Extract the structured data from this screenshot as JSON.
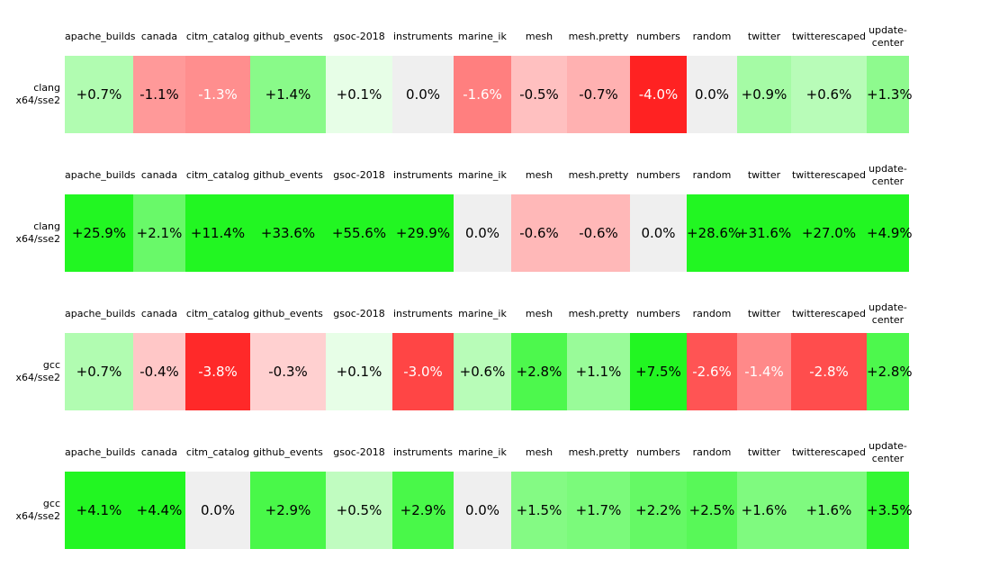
{
  "chart_data": {
    "type": "heatmap",
    "columns": [
      "apache_builds",
      "canada",
      "citm_catalog",
      "github_events",
      "gsoc-2018",
      "instruments",
      "marine_ik",
      "mesh",
      "mesh.pretty",
      "numbers",
      "random",
      "twitter",
      "twitterescaped",
      "update-center"
    ],
    "rows": [
      {
        "label_lines": [
          "clang",
          "x64/sse2"
        ],
        "cells": [
          "+0.7%",
          "-1.1%",
          "-1.3%",
          "+1.4%",
          "+0.1%",
          "0.0%",
          "-1.6%",
          "-0.5%",
          "-0.7%",
          "-4.0%",
          "0.0%",
          "+0.9%",
          "+0.6%",
          "+1.3%"
        ],
        "values": [
          0.7,
          -1.1,
          -1.3,
          1.4,
          0.1,
          0.0,
          -1.6,
          -0.5,
          -0.7,
          -4.0,
          0.0,
          0.9,
          0.6,
          1.3
        ]
      },
      {
        "label_lines": [
          "clang",
          "x64/sse2"
        ],
        "cells": [
          "+25.9%",
          "+2.1%",
          "+11.4%",
          "+33.6%",
          "+55.6%",
          "+29.9%",
          "0.0%",
          "-0.6%",
          "-0.6%",
          "0.0%",
          "+28.6%",
          "+31.6%",
          "+27.0%",
          "+4.9%"
        ],
        "values": [
          25.9,
          2.1,
          11.4,
          33.6,
          55.6,
          29.9,
          0.0,
          -0.6,
          -0.6,
          0.0,
          28.6,
          31.6,
          27.0,
          4.9
        ]
      },
      {
        "label_lines": [
          "gcc",
          "x64/sse2"
        ],
        "cells": [
          "+0.7%",
          "-0.4%",
          "-3.8%",
          "-0.3%",
          "+0.1%",
          "-3.0%",
          "+0.6%",
          "+2.8%",
          "+1.1%",
          "+7.5%",
          "-2.6%",
          "-1.4%",
          "-2.8%",
          "+2.8%"
        ],
        "values": [
          0.7,
          -0.4,
          -3.8,
          -0.3,
          0.1,
          -3.0,
          0.6,
          2.8,
          1.1,
          7.5,
          -2.6,
          -1.4,
          -2.8,
          2.8
        ]
      },
      {
        "label_lines": [
          "gcc",
          "x64/sse2"
        ],
        "cells": [
          "+4.1%",
          "+4.4%",
          "0.0%",
          "+2.9%",
          "+0.5%",
          "+2.9%",
          "0.0%",
          "+1.5%",
          "+1.7%",
          "+2.2%",
          "+2.5%",
          "+1.6%",
          "+1.6%",
          "+3.5%"
        ],
        "values": [
          4.1,
          4.4,
          0.0,
          2.9,
          0.5,
          2.9,
          0.0,
          1.5,
          1.7,
          2.2,
          2.5,
          1.6,
          1.6,
          3.5
        ]
      }
    ],
    "colors": {
      "positive_full": "#22f622",
      "negative_full": "#ff2222",
      "zero_background": "#efefef",
      "text_dark": "#000000",
      "text_light": "#ffffff"
    },
    "color_scale": {
      "saturate_at_abs_percent": 4,
      "exponent": 0.6,
      "white_text_at_or_below": -1.2
    },
    "legend": "green = faster (positive %), red = slower (negative %), gray = no change"
  }
}
